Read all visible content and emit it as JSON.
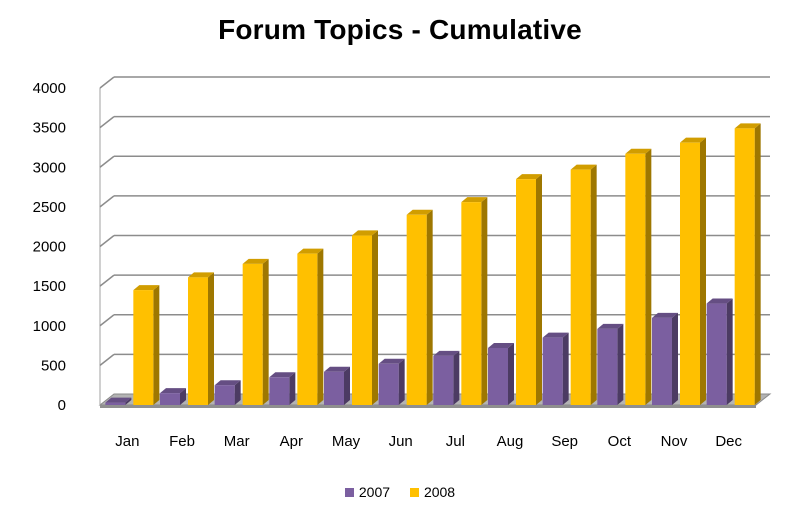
{
  "chart_data": {
    "type": "bar",
    "title": "Forum Topics - Cumulative",
    "xlabel": "",
    "ylabel": "",
    "categories": [
      "Jan",
      "Feb",
      "Mar",
      "Apr",
      "May",
      "Jun",
      "Jul",
      "Aug",
      "Sep",
      "Oct",
      "Nov",
      "Dec"
    ],
    "series": [
      {
        "name": "2007",
        "color": "#7B5FA0",
        "values": [
          30,
          150,
          250,
          350,
          420,
          520,
          620,
          720,
          850,
          960,
          1100,
          1280
        ]
      },
      {
        "name": "2008",
        "color": "#FFC000",
        "values": [
          1450,
          1610,
          1780,
          1910,
          2140,
          2400,
          2560,
          2850,
          2970,
          3170,
          3310,
          3490
        ]
      }
    ],
    "yticks": [
      "0",
      "500",
      "1000",
      "1500",
      "2000",
      "2500",
      "3000",
      "3500",
      "4000"
    ],
    "ylim": [
      0,
      4000
    ],
    "grid": true,
    "legend_position": "bottom",
    "style": "3d-column"
  }
}
